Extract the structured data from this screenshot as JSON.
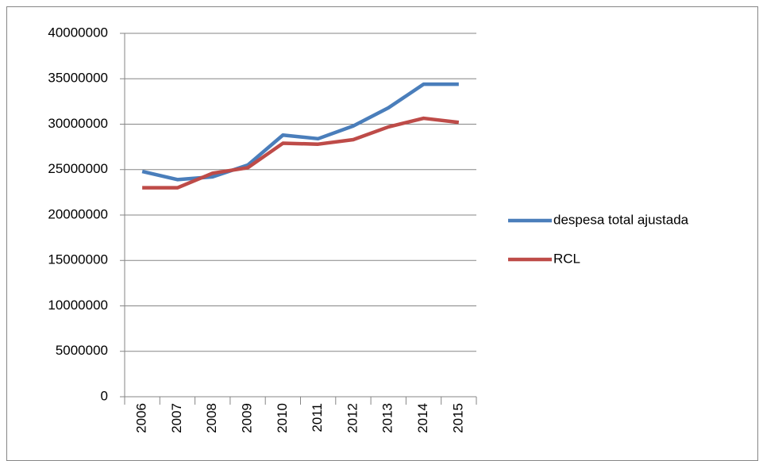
{
  "chart_data": {
    "type": "line",
    "categories": [
      "2006",
      "2007",
      "2008",
      "2009",
      "2010",
      "2011",
      "2012",
      "2013",
      "2014",
      "2015"
    ],
    "series": [
      {
        "name": "despesa total ajustada",
        "color": "#4a7ebb",
        "values": [
          24800000,
          23900000,
          24200000,
          25500000,
          28800000,
          28400000,
          29800000,
          31800000,
          34400000,
          34400000
        ]
      },
      {
        "name": "RCL",
        "color": "#be4b48",
        "values": [
          23000000,
          23000000,
          24600000,
          25200000,
          27900000,
          27800000,
          28300000,
          29700000,
          30650000,
          30200000
        ]
      }
    ],
    "ylim": [
      0,
      40000000
    ],
    "yticks": [
      0,
      5000000,
      10000000,
      15000000,
      20000000,
      25000000,
      30000000,
      35000000,
      40000000
    ],
    "grid": true,
    "legend": "right"
  }
}
